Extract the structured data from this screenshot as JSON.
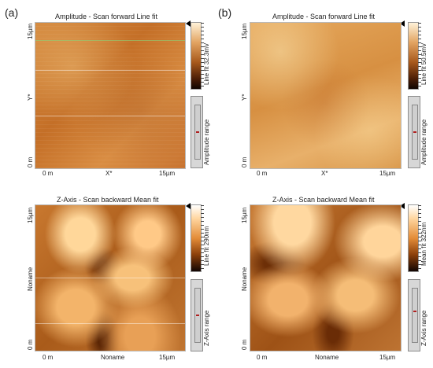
{
  "panel_letters": {
    "a": "(a)",
    "b": "(b)"
  },
  "panels": {
    "tl": {
      "title": "Amplitude - Scan forward   Line fit",
      "y_label": "Y*",
      "x_label": "X*",
      "y_top": "15µm",
      "y_bottom": "0 m",
      "x_left": "0 m",
      "x_right": "15µm",
      "colorbar_label": "Line fit 32.3mV",
      "range_label": "Amplitude range"
    },
    "tr": {
      "title": "Amplitude - Scan forward   Line fit",
      "y_label": "Y*",
      "x_label": "X*",
      "y_top": "15µm",
      "y_bottom": "0 m",
      "x_left": "0 m",
      "x_right": "15µm",
      "colorbar_label": "Line fit 50.5mV",
      "range_label": "Amplitude range"
    },
    "bl": {
      "title": "Z-Axis - Scan backward   Mean fit",
      "y_label": "Noname",
      "x_label": "Noname",
      "y_top": "15µm",
      "y_bottom": "0 m",
      "x_left": "0 m",
      "x_right": "15µm",
      "colorbar_label": "Line fit 290nm",
      "range_label": "Z-Axis range"
    },
    "br": {
      "title": "Z-Axis - Scan backward   Mean fit",
      "y_label": "Noname",
      "x_label": "Noname",
      "y_top": "15µm",
      "y_bottom": "0 m",
      "x_left": "0 m",
      "x_right": "15µm",
      "colorbar_label": "Mean fit 322nm",
      "range_label": "Z-Axis range"
    }
  }
}
